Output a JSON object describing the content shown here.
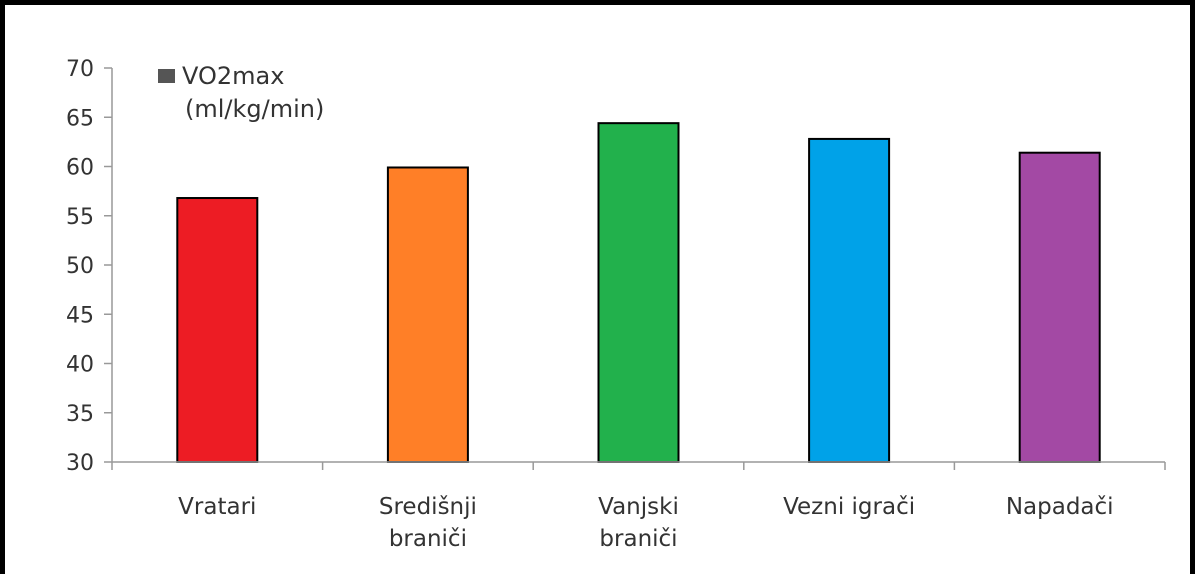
{
  "chart_data": {
    "type": "bar",
    "categories": [
      [
        "Vratari"
      ],
      [
        "Središnji",
        "braniči"
      ],
      [
        "Vanjski",
        "braniči"
      ],
      [
        "Vezni igrači"
      ],
      [
        "Napadači"
      ]
    ],
    "values": [
      56.8,
      59.9,
      64.4,
      62.8,
      61.4
    ],
    "colors": [
      "#ed1c24",
      "#ff7f27",
      "#22b14c",
      "#00a2e8",
      "#a349a4"
    ],
    "ylim": [
      30,
      70
    ],
    "yticks": [
      30,
      35,
      40,
      45,
      50,
      55,
      60,
      65,
      70
    ],
    "legend": {
      "lines": [
        "VO2max",
        "(ml/kg/min)"
      ],
      "swatch_color": "#555555",
      "position": "top-left"
    },
    "grid": false
  }
}
